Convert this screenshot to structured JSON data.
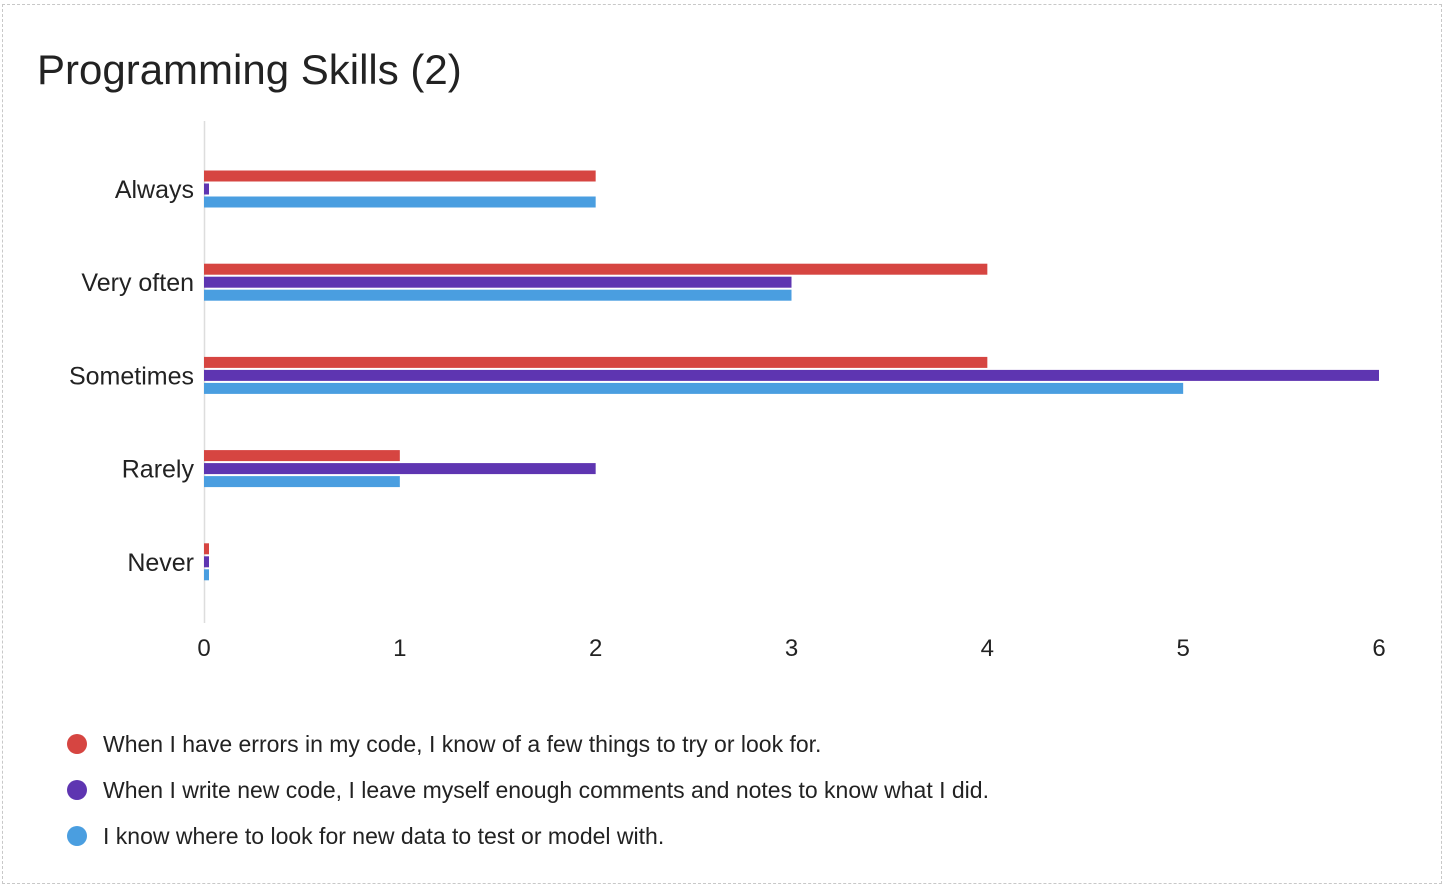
{
  "chart_data": {
    "type": "bar",
    "orientation": "horizontal",
    "title": "Programming Skills (2)",
    "categories": [
      "Always",
      "Very often",
      "Sometimes",
      "Rarely",
      "Never"
    ],
    "series": [
      {
        "name": "When I have errors in my code, I know of a few things to try or look for.",
        "color": "#d64541",
        "values": [
          2,
          4,
          4,
          1,
          0
        ]
      },
      {
        "name": "When I write new code, I leave myself enough comments and notes to know what I did.",
        "color": "#5e35b1",
        "values": [
          0,
          3,
          6,
          2,
          0
        ]
      },
      {
        "name": "I know where to look for new data to test or model with.",
        "color": "#4a9ee0",
        "values": [
          2,
          3,
          5,
          1,
          0
        ]
      }
    ],
    "xlim": [
      0,
      6
    ],
    "xticks": [
      0,
      1,
      2,
      3,
      4,
      5,
      6
    ],
    "grid": false,
    "legend_position": "bottom"
  }
}
